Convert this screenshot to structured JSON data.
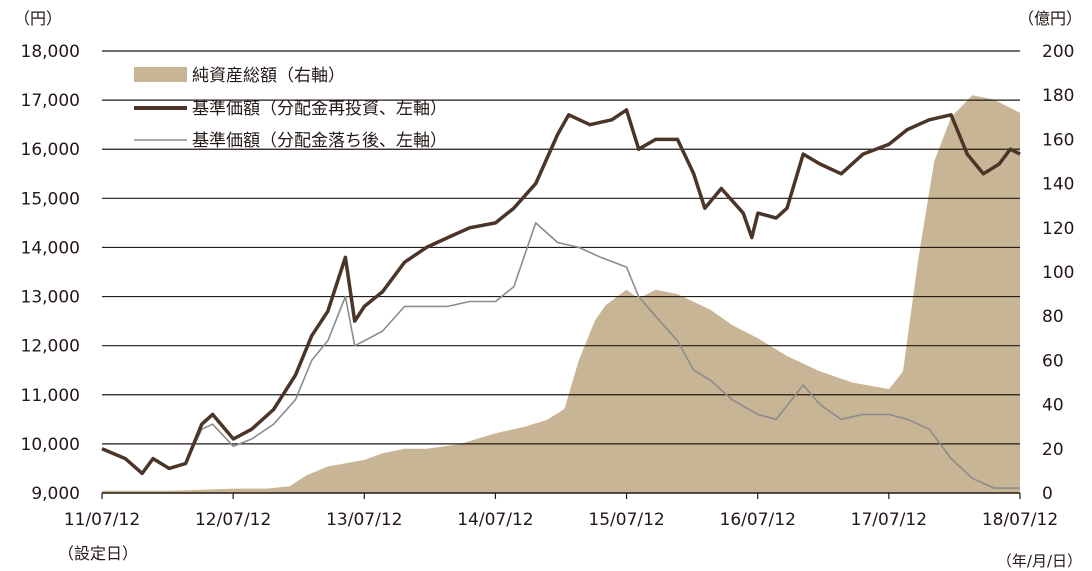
{
  "chart_data": {
    "type": "area+line",
    "units": {
      "left": "（円）",
      "right": "（億円）",
      "x": "（年/月/日）"
    },
    "start_label": "（設定日）",
    "x_ticks": [
      "11/07/12",
      "12/07/12",
      "13/07/12",
      "14/07/12",
      "15/07/12",
      "16/07/12",
      "17/07/12",
      "18/07/12"
    ],
    "y_left": {
      "min": 9000,
      "max": 18000,
      "ticks": [
        "9,000",
        "10,000",
        "11,000",
        "12,000",
        "13,000",
        "14,000",
        "15,000",
        "16,000",
        "17,000",
        "18,000"
      ]
    },
    "y_right": {
      "min": 0,
      "max": 200,
      "ticks": [
        "0",
        "20",
        "40",
        "60",
        "80",
        "100",
        "120",
        "140",
        "160",
        "180",
        "200"
      ]
    },
    "grid": true,
    "legend_position": "top-left",
    "colors": {
      "net_assets": "#c8b595",
      "nav_reinvested": "#4a3528",
      "nav_after_dist": "#8c8c8c",
      "grid": "#231815"
    },
    "series": [
      {
        "name": "純資産総額（右軸）",
        "axis": "right",
        "kind": "area",
        "points": [
          [
            "2011-07-12",
            1
          ],
          [
            "2011-10-15",
            1
          ],
          [
            "2012-01-15",
            1
          ],
          [
            "2012-04-15",
            1.5
          ],
          [
            "2012-07-12",
            2
          ],
          [
            "2012-10-12",
            2
          ],
          [
            "2012-12-15",
            3
          ],
          [
            "2013-02-01",
            8
          ],
          [
            "2013-04-01",
            12
          ],
          [
            "2013-07-12",
            15
          ],
          [
            "2013-09-01",
            18
          ],
          [
            "2013-11-01",
            20
          ],
          [
            "2014-01-01",
            20
          ],
          [
            "2014-04-01",
            22
          ],
          [
            "2014-07-12",
            27
          ],
          [
            "2014-10-01",
            30
          ],
          [
            "2014-12-01",
            33
          ],
          [
            "2015-01-20",
            38
          ],
          [
            "2015-03-01",
            60
          ],
          [
            "2015-04-15",
            78
          ],
          [
            "2015-05-15",
            85
          ],
          [
            "2015-07-12",
            92
          ],
          [
            "2015-08-15",
            88
          ],
          [
            "2015-10-01",
            92
          ],
          [
            "2015-12-01",
            90
          ],
          [
            "2016-03-01",
            83
          ],
          [
            "2016-05-01",
            76
          ],
          [
            "2016-07-12",
            70
          ],
          [
            "2016-10-01",
            62
          ],
          [
            "2017-01-01",
            55
          ],
          [
            "2017-04-01",
            50
          ],
          [
            "2017-07-12",
            47
          ],
          [
            "2017-08-20",
            55
          ],
          [
            "2017-10-01",
            105
          ],
          [
            "2017-11-15",
            150
          ],
          [
            "2018-01-01",
            170
          ],
          [
            "2018-03-01",
            180
          ],
          [
            "2018-05-01",
            178
          ],
          [
            "2018-07-12",
            172
          ]
        ]
      },
      {
        "name": "基準価額（分配金再投資、左軸）",
        "axis": "left",
        "kind": "line",
        "points": [
          [
            "2011-07-12",
            9900
          ],
          [
            "2011-09-15",
            9700
          ],
          [
            "2011-11-01",
            9400
          ],
          [
            "2011-12-01",
            9700
          ],
          [
            "2012-01-15",
            9500
          ],
          [
            "2012-03-01",
            9600
          ],
          [
            "2012-04-15",
            10400
          ],
          [
            "2012-05-15",
            10600
          ],
          [
            "2012-07-12",
            10100
          ],
          [
            "2012-09-01",
            10300
          ],
          [
            "2012-11-01",
            10700
          ],
          [
            "2013-01-01",
            11400
          ],
          [
            "2013-02-15",
            12200
          ],
          [
            "2013-04-01",
            12700
          ],
          [
            "2013-05-20",
            13800
          ],
          [
            "2013-06-15",
            12500
          ],
          [
            "2013-07-12",
            12800
          ],
          [
            "2013-09-01",
            13100
          ],
          [
            "2013-11-01",
            13700
          ],
          [
            "2014-01-01",
            14000
          ],
          [
            "2014-03-01",
            14200
          ],
          [
            "2014-05-01",
            14400
          ],
          [
            "2014-07-12",
            14500
          ],
          [
            "2014-09-01",
            14800
          ],
          [
            "2014-11-01",
            15300
          ],
          [
            "2015-01-01",
            16300
          ],
          [
            "2015-02-01",
            16700
          ],
          [
            "2015-04-01",
            16500
          ],
          [
            "2015-06-01",
            16600
          ],
          [
            "2015-07-12",
            16800
          ],
          [
            "2015-08-15",
            16000
          ],
          [
            "2015-10-01",
            16200
          ],
          [
            "2015-12-01",
            16200
          ],
          [
            "2016-01-15",
            15500
          ],
          [
            "2016-02-15",
            14800
          ],
          [
            "2016-04-01",
            15200
          ],
          [
            "2016-06-01",
            14700
          ],
          [
            "2016-06-25",
            14200
          ],
          [
            "2016-07-12",
            14700
          ],
          [
            "2016-09-01",
            14600
          ],
          [
            "2016-10-01",
            14800
          ],
          [
            "2016-11-15",
            15900
          ],
          [
            "2017-01-01",
            15700
          ],
          [
            "2017-03-01",
            15500
          ],
          [
            "2017-05-01",
            15900
          ],
          [
            "2017-07-12",
            16100
          ],
          [
            "2017-09-01",
            16400
          ],
          [
            "2017-11-01",
            16600
          ],
          [
            "2018-01-01",
            16700
          ],
          [
            "2018-02-15",
            15900
          ],
          [
            "2018-04-01",
            15500
          ],
          [
            "2018-05-15",
            15700
          ],
          [
            "2018-06-15",
            16000
          ],
          [
            "2018-07-12",
            15900
          ]
        ]
      },
      {
        "name": "基準価額（分配金落ち後、左軸）",
        "axis": "left",
        "kind": "line",
        "points": [
          [
            "2011-07-12",
            9900
          ],
          [
            "2011-09-15",
            9700
          ],
          [
            "2011-11-01",
            9400
          ],
          [
            "2011-12-01",
            9700
          ],
          [
            "2012-01-15",
            9500
          ],
          [
            "2012-03-01",
            9600
          ],
          [
            "2012-04-15",
            10300
          ],
          [
            "2012-05-15",
            10400
          ],
          [
            "2012-07-12",
            9950
          ],
          [
            "2012-09-01",
            10100
          ],
          [
            "2012-11-01",
            10400
          ],
          [
            "2013-01-01",
            10900
          ],
          [
            "2013-02-15",
            11700
          ],
          [
            "2013-04-01",
            12100
          ],
          [
            "2013-05-20",
            13000
          ],
          [
            "2013-06-15",
            12000
          ],
          [
            "2013-07-12",
            12100
          ],
          [
            "2013-09-01",
            12300
          ],
          [
            "2013-11-01",
            12800
          ],
          [
            "2014-01-01",
            12800
          ],
          [
            "2014-03-01",
            12800
          ],
          [
            "2014-05-01",
            12900
          ],
          [
            "2014-07-12",
            12900
          ],
          [
            "2014-09-01",
            13200
          ],
          [
            "2014-11-01",
            14500
          ],
          [
            "2015-01-01",
            14100
          ],
          [
            "2015-03-01",
            14000
          ],
          [
            "2015-05-01",
            13800
          ],
          [
            "2015-07-12",
            13600
          ],
          [
            "2015-08-15",
            13000
          ],
          [
            "2015-10-01",
            12600
          ],
          [
            "2015-12-01",
            12100
          ],
          [
            "2016-01-15",
            11500
          ],
          [
            "2016-03-01",
            11300
          ],
          [
            "2016-05-01",
            10900
          ],
          [
            "2016-07-12",
            10600
          ],
          [
            "2016-09-01",
            10500
          ],
          [
            "2016-11-15",
            11200
          ],
          [
            "2017-01-01",
            10800
          ],
          [
            "2017-03-01",
            10500
          ],
          [
            "2017-05-01",
            10600
          ],
          [
            "2017-07-12",
            10600
          ],
          [
            "2017-09-01",
            10500
          ],
          [
            "2017-11-01",
            10300
          ],
          [
            "2018-01-01",
            9700
          ],
          [
            "2018-03-01",
            9300
          ],
          [
            "2018-05-01",
            9100
          ],
          [
            "2018-07-12",
            9100
          ]
        ]
      }
    ]
  }
}
